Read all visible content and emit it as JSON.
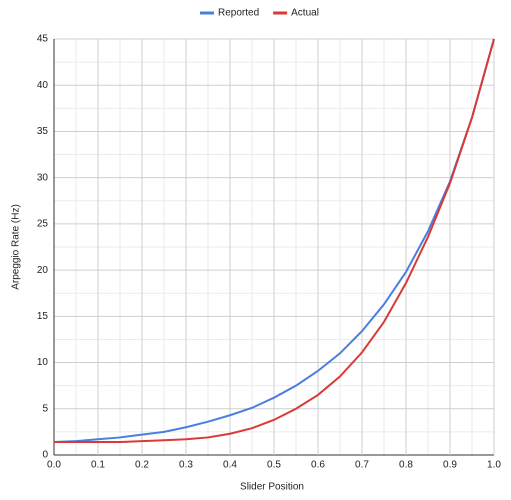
{
  "chart_data": {
    "type": "line",
    "x": [
      0,
      0.05,
      0.1,
      0.15,
      0.2,
      0.25,
      0.3,
      0.35,
      0.4,
      0.45,
      0.5,
      0.55,
      0.6,
      0.65,
      0.7,
      0.75,
      0.8,
      0.85,
      0.9,
      0.95,
      1
    ],
    "series": [
      {
        "name": "Reported",
        "color": "#4a7fe0",
        "values": [
          1.4,
          1.5,
          1.7,
          1.9,
          2.2,
          2.5,
          3.0,
          3.6,
          4.3,
          5.1,
          6.2,
          7.5,
          9.1,
          11.0,
          13.4,
          16.3,
          19.8,
          24.2,
          29.6,
          36.5,
          45
        ]
      },
      {
        "name": "Actual",
        "color": "#d93a35",
        "values": [
          1.4,
          1.4,
          1.4,
          1.4,
          1.5,
          1.6,
          1.7,
          1.9,
          2.3,
          2.9,
          3.8,
          5.0,
          6.5,
          8.5,
          11.1,
          14.4,
          18.6,
          23.6,
          29.4,
          36.5,
          45
        ]
      }
    ],
    "xlabel": "Slider Position",
    "ylabel": "Arpeggio Rate (Hz)",
    "xlim": [
      0,
      1
    ],
    "ylim": [
      0,
      45
    ],
    "xticks": [
      {
        "value": 0,
        "label": "0.0"
      },
      0.1,
      0.2,
      0.3,
      0.4,
      0.5,
      0.6,
      0.7,
      0.8,
      0.9,
      {
        "value": 1,
        "label": "1.0"
      }
    ],
    "yticks": [
      0,
      5,
      10,
      15,
      20,
      25,
      30,
      35,
      40,
      45
    ],
    "grid": true,
    "legend": "top"
  }
}
